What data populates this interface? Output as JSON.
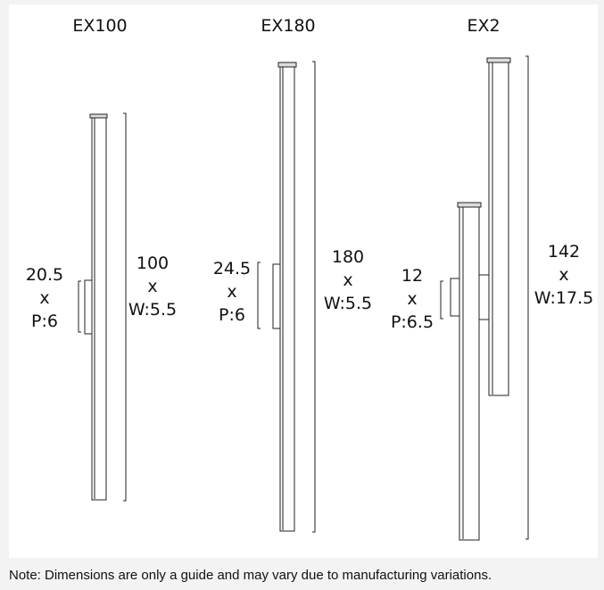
{
  "products": [
    {
      "name": "EX100",
      "mount_dim": [
        "20.5",
        "x",
        "P:6"
      ],
      "height_dim": [
        "100",
        "x",
        "W:5.5"
      ]
    },
    {
      "name": "EX180",
      "mount_dim": [
        "24.5",
        "x",
        "P:6"
      ],
      "height_dim": [
        "180",
        "x",
        "W:5.5"
      ]
    },
    {
      "name": "EX2",
      "mount_dim": [
        "12",
        "x",
        "P:6.5"
      ],
      "height_dim": [
        "142",
        "x",
        "W:17.5"
      ]
    }
  ],
  "note": "Note: Dimensions are only a guide and may vary due to manufacturing variations."
}
